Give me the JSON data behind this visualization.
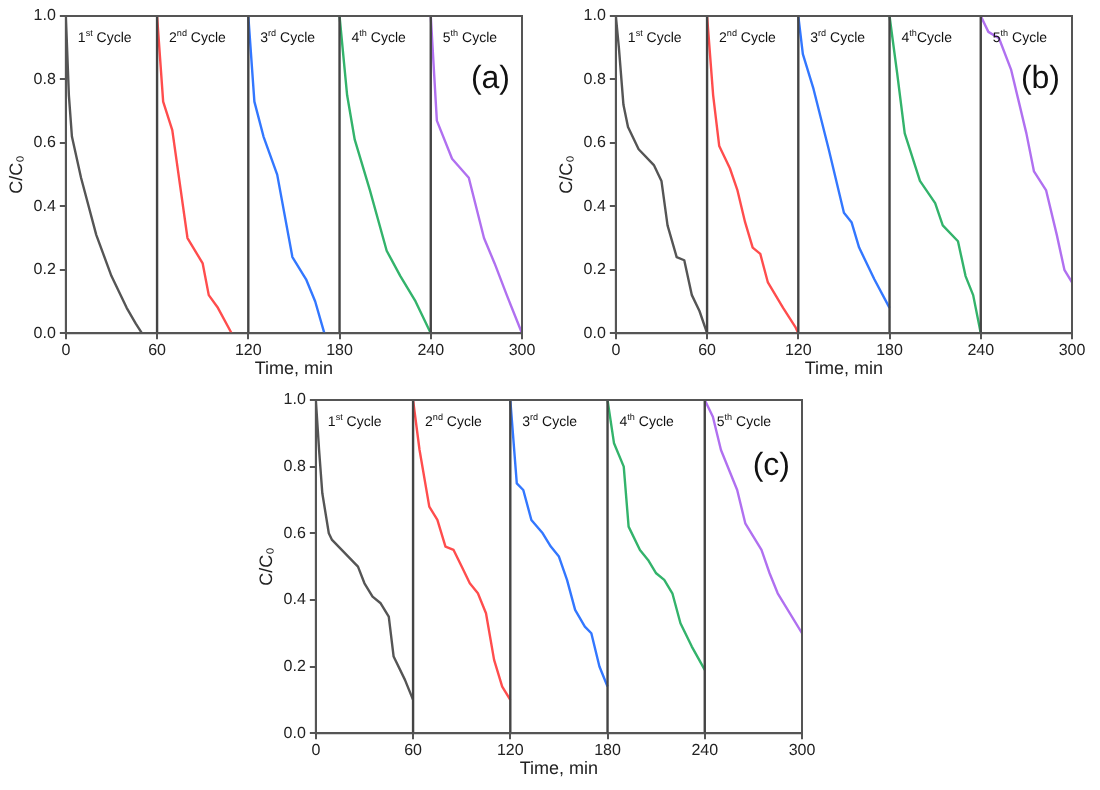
{
  "chart_data": [
    {
      "type": "line",
      "xlabel": "Time, min",
      "ylabel": "C/C₀",
      "xlim": [
        0,
        300
      ],
      "ylim": [
        0,
        1
      ],
      "xticks": [
        0,
        60,
        120,
        180,
        240,
        300
      ],
      "yticks": [
        {
          "value": 0,
          "label": "0.0"
        },
        {
          "value": 0.2,
          "label": "0.2"
        },
        {
          "value": 0.4,
          "label": "0.4"
        },
        {
          "value": 0.6,
          "label": "0.6"
        },
        {
          "value": 0.8,
          "label": "0.8"
        },
        {
          "value": 1,
          "label": "1.0"
        }
      ],
      "grid": false,
      "legend": false,
      "ref_lines": [
        {
          "axis": "x",
          "value": 60,
          "color": "#444444"
        },
        {
          "axis": "x",
          "value": 120,
          "color": "#444444"
        },
        {
          "axis": "x",
          "value": 180,
          "color": "#444444"
        },
        {
          "axis": "x",
          "value": 240,
          "color": "#444444"
        }
      ],
      "annotations": [
        "1$^{st}$ Cycle",
        "2$^{nd}$ Cycle",
        "3$^{rd}$ Cycle",
        "4$^{th}$ Cycle",
        "5$^{th}$ Cycle",
        "(a)"
      ],
      "series": [
        {
          "color": "#555555",
          "x": [
            0,
            2,
            4,
            10,
            20,
            30,
            40,
            46,
            50
          ],
          "values": [
            1.0,
            0.75,
            0.62,
            0.49,
            0.31,
            0.18,
            0.08,
            0.03,
            0
          ]
        },
        {
          "color": "#ff4d4d",
          "x": [
            60,
            64,
            70,
            80,
            90,
            94,
            100,
            109
          ],
          "values": [
            1.0,
            0.73,
            0.64,
            0.3,
            0.22,
            0.12,
            0.08,
            0
          ]
        },
        {
          "color": "#3377ff",
          "x": [
            120,
            124,
            130,
            139,
            149,
            158,
            164,
            170
          ],
          "values": [
            1.0,
            0.73,
            0.62,
            0.5,
            0.24,
            0.17,
            0.1,
            0
          ]
        },
        {
          "color": "#33b36b",
          "x": [
            180,
            185,
            190,
            200,
            211,
            220,
            230,
            240
          ],
          "values": [
            1.0,
            0.75,
            0.61,
            0.45,
            0.26,
            0.18,
            0.1,
            0
          ]
        },
        {
          "color": "#b070f0",
          "x": [
            240,
            244,
            254,
            265,
            275,
            282,
            290,
            300
          ],
          "values": [
            1.0,
            0.67,
            0.55,
            0.49,
            0.3,
            0.22,
            0.12,
            0
          ]
        }
      ]
    },
    {
      "type": "line",
      "xlabel": "Time, min",
      "ylabel": "C/C₀",
      "xlim": [
        0,
        300
      ],
      "ylim": [
        0,
        1
      ],
      "xticks": [
        0,
        60,
        120,
        180,
        240,
        300
      ],
      "yticks": [
        {
          "value": 0,
          "label": "0.0"
        },
        {
          "value": 0.2,
          "label": "0.2"
        },
        {
          "value": 0.4,
          "label": "0.4"
        },
        {
          "value": 0.6,
          "label": "0.6"
        },
        {
          "value": 0.8,
          "label": "0.8"
        },
        {
          "value": 1,
          "label": "1.0"
        }
      ],
      "grid": false,
      "legend": false,
      "ref_lines": [
        {
          "axis": "x",
          "value": 60,
          "color": "#444444"
        },
        {
          "axis": "x",
          "value": 120,
          "color": "#444444"
        },
        {
          "axis": "x",
          "value": 180,
          "color": "#444444"
        },
        {
          "axis": "x",
          "value": 240,
          "color": "#444444"
        }
      ],
      "annotations": [
        "1$^{st}$ Cycle",
        "2$^{nd}$ Cycle",
        "3$^{rd}$ Cycle",
        "4$^{th}$Cycle",
        "5$^{th}$ Cycle",
        "(b)"
      ],
      "series": [
        {
          "color": "#555555",
          "x": [
            0,
            2,
            5,
            8,
            15,
            25,
            30,
            34,
            40,
            45,
            50,
            55,
            60
          ],
          "values": [
            1.0,
            0.9,
            0.72,
            0.65,
            0.58,
            0.53,
            0.48,
            0.34,
            0.24,
            0.23,
            0.12,
            0.07,
            0
          ]
        },
        {
          "color": "#ff4d4d",
          "x": [
            60,
            64,
            68,
            75,
            80,
            85,
            90,
            95,
            100,
            110,
            118,
            120
          ],
          "values": [
            1.0,
            0.75,
            0.59,
            0.52,
            0.45,
            0.35,
            0.27,
            0.25,
            0.16,
            0.08,
            0.02,
            0
          ]
        },
        {
          "color": "#3377ff",
          "x": [
            120,
            123,
            130,
            140,
            150,
            155,
            160,
            170,
            180
          ],
          "values": [
            1.0,
            0.88,
            0.77,
            0.58,
            0.38,
            0.35,
            0.27,
            0.17,
            0.08
          ]
        },
        {
          "color": "#33b36b",
          "x": [
            180,
            185,
            190,
            200,
            210,
            215,
            225,
            230,
            235,
            240
          ],
          "values": [
            1.0,
            0.82,
            0.63,
            0.48,
            0.41,
            0.34,
            0.29,
            0.18,
            0.12,
            0
          ]
        },
        {
          "color": "#b070f0",
          "x": [
            240,
            245,
            252,
            260,
            265,
            270,
            275,
            283,
            290,
            295,
            300
          ],
          "values": [
            1.0,
            0.95,
            0.93,
            0.83,
            0.73,
            0.63,
            0.51,
            0.45,
            0.31,
            0.2,
            0.16
          ]
        }
      ]
    },
    {
      "type": "line",
      "xlabel": "Time, min",
      "ylabel": "C/C₀",
      "xlim": [
        0,
        300
      ],
      "ylim": [
        0,
        1
      ],
      "xticks": [
        0,
        60,
        120,
        180,
        240,
        300
      ],
      "yticks": [
        {
          "value": 0,
          "label": "0.0"
        },
        {
          "value": 0.2,
          "label": "0.2"
        },
        {
          "value": 0.4,
          "label": "0.4"
        },
        {
          "value": 0.6,
          "label": "0.6"
        },
        {
          "value": 0.8,
          "label": "0.8"
        },
        {
          "value": 1,
          "label": "1.0"
        }
      ],
      "grid": false,
      "legend": false,
      "ref_lines": [
        {
          "axis": "x",
          "value": 60,
          "color": "#444444"
        },
        {
          "axis": "x",
          "value": 120,
          "color": "#444444"
        },
        {
          "axis": "x",
          "value": 180,
          "color": "#444444"
        },
        {
          "axis": "x",
          "value": 240,
          "color": "#444444"
        }
      ],
      "annotations": [
        "1$^{st}$ Cycle",
        "2$^{nd}$ Cycle",
        "3$^{rd}$ Cycle",
        "4$^{th}$ Cycle",
        "5$^{th}$ Cycle",
        "(c)"
      ],
      "series": [
        {
          "color": "#555555",
          "x": [
            0,
            2,
            4,
            8,
            10,
            20,
            26,
            30,
            35,
            40,
            45,
            48,
            55,
            60
          ],
          "values": [
            1.0,
            0.85,
            0.72,
            0.6,
            0.58,
            0.53,
            0.5,
            0.45,
            0.41,
            0.39,
            0.35,
            0.23,
            0.16,
            0.1
          ]
        },
        {
          "color": "#ff4d4d",
          "x": [
            60,
            64,
            70,
            75,
            80,
            85,
            90,
            95,
            100,
            105,
            110,
            115,
            120
          ],
          "values": [
            1.0,
            0.85,
            0.68,
            0.64,
            0.56,
            0.55,
            0.5,
            0.45,
            0.42,
            0.36,
            0.22,
            0.14,
            0.1
          ]
        },
        {
          "color": "#3377ff",
          "x": [
            120,
            124,
            128,
            133,
            140,
            145,
            150,
            155,
            160,
            166,
            170,
            175,
            180
          ],
          "values": [
            1.0,
            0.75,
            0.73,
            0.64,
            0.6,
            0.56,
            0.53,
            0.46,
            0.37,
            0.32,
            0.3,
            0.2,
            0.14
          ]
        },
        {
          "color": "#33b36b",
          "x": [
            180,
            184,
            190,
            193,
            200,
            205,
            210,
            215,
            220,
            225,
            232,
            240
          ],
          "values": [
            1.0,
            0.87,
            0.8,
            0.62,
            0.55,
            0.52,
            0.48,
            0.46,
            0.42,
            0.33,
            0.26,
            0.19
          ]
        },
        {
          "color": "#b070f0",
          "x": [
            240,
            245,
            250,
            260,
            265,
            275,
            280,
            285,
            300
          ],
          "values": [
            1.0,
            0.95,
            0.85,
            0.73,
            0.63,
            0.55,
            0.48,
            0.42,
            0.3
          ]
        }
      ]
    }
  ]
}
